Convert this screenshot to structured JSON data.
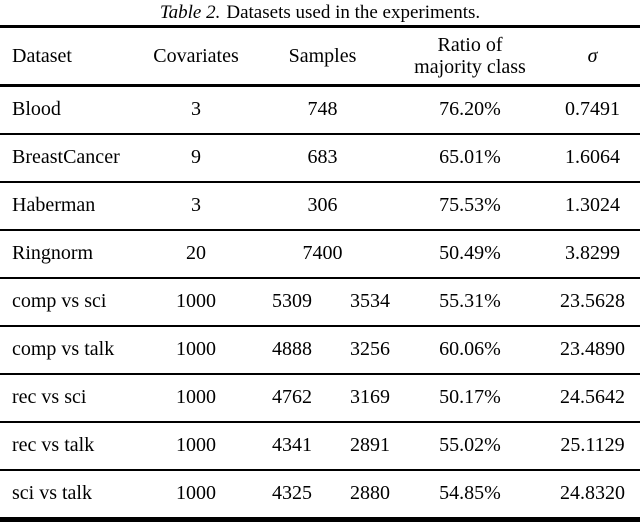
{
  "caption": {
    "label": "Table 2.",
    "text": "Datasets used in the experiments."
  },
  "table": {
    "headers": {
      "dataset": "Dataset",
      "covariates": "Covariates",
      "samples": "Samples",
      "ratio_line1": "Ratio of",
      "ratio_line2": "majority class",
      "sigma": "σ"
    },
    "rows": [
      {
        "dataset": "Blood",
        "covariates": "3",
        "samples": "748",
        "ratio": "76.20%",
        "sigma": "0.7491"
      },
      {
        "dataset": "BreastCancer",
        "covariates": "9",
        "samples": "683",
        "ratio": "65.01%",
        "sigma": "1.6064"
      },
      {
        "dataset": "Haberman",
        "covariates": "3",
        "samples": "306",
        "ratio": "75.53%",
        "sigma": "1.3024"
      },
      {
        "dataset": "Ringnorm",
        "covariates": "20",
        "samples": "7400",
        "ratio": "50.49%",
        "sigma": "3.8299"
      },
      {
        "dataset": "comp vs sci",
        "covariates": "1000",
        "samples": "5309",
        "samples2": "3534",
        "ratio": "55.31%",
        "sigma": "23.5628"
      },
      {
        "dataset": "comp vs talk",
        "covariates": "1000",
        "samples": "4888",
        "samples2": "3256",
        "ratio": "60.06%",
        "sigma": "23.4890"
      },
      {
        "dataset": "rec vs sci",
        "covariates": "1000",
        "samples": "4762",
        "samples2": "3169",
        "ratio": "50.17%",
        "sigma": "24.5642"
      },
      {
        "dataset": "rec vs talk",
        "covariates": "1000",
        "samples": "4341",
        "samples2": "2891",
        "ratio": "55.02%",
        "sigma": "25.1129"
      },
      {
        "dataset": "sci vs talk",
        "covariates": "1000",
        "samples": "4325",
        "samples2": "2880",
        "ratio": "54.85%",
        "sigma": "24.8320"
      }
    ]
  },
  "colors": {
    "text": "#000000",
    "background": "#ffffff",
    "rule": "#000000"
  }
}
